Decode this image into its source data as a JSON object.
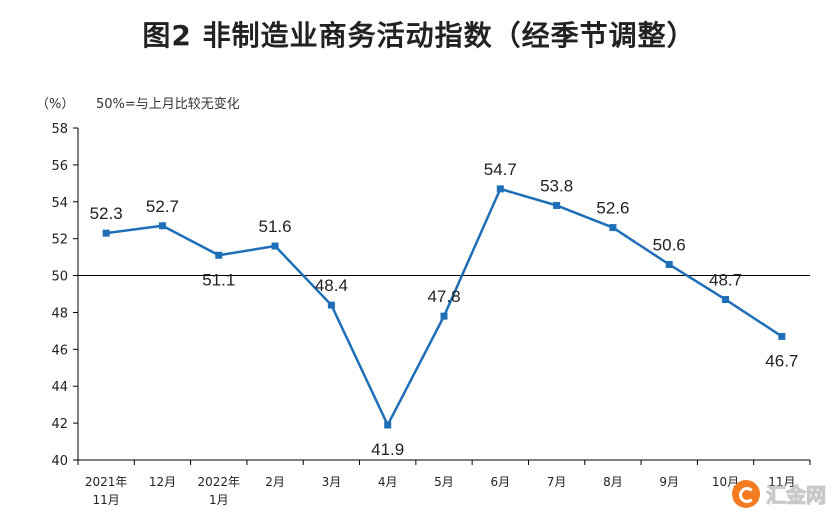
{
  "chart_data": {
    "type": "line",
    "title": "图2  非制造业商务活动指数（经季节调整）",
    "unit_label": "（%）",
    "note": "50%=与上月比较无变化",
    "categories": [
      [
        "2021年",
        "11月"
      ],
      [
        "12月"
      ],
      [
        "2022年",
        "1月"
      ],
      [
        "2月"
      ],
      [
        "3月"
      ],
      [
        "4月"
      ],
      [
        "5月"
      ],
      [
        "6月"
      ],
      [
        "7月"
      ],
      [
        "8月"
      ],
      [
        "9月"
      ],
      [
        "10月"
      ],
      [
        "11月"
      ]
    ],
    "series": [
      {
        "values": [
          52.3,
          52.7,
          51.1,
          51.6,
          48.4,
          41.9,
          47.8,
          54.7,
          53.8,
          52.6,
          50.6,
          48.7,
          46.7
        ]
      }
    ],
    "ylim": [
      40,
      58
    ],
    "yticks": [
      40,
      42,
      44,
      46,
      48,
      50,
      52,
      54,
      56,
      58
    ],
    "reference_line": 50,
    "colors": {
      "line": "#1f6fb8",
      "axis": "#000000"
    }
  },
  "watermark": {
    "text": "汇金网",
    "icon": "huijin-logo-icon"
  }
}
